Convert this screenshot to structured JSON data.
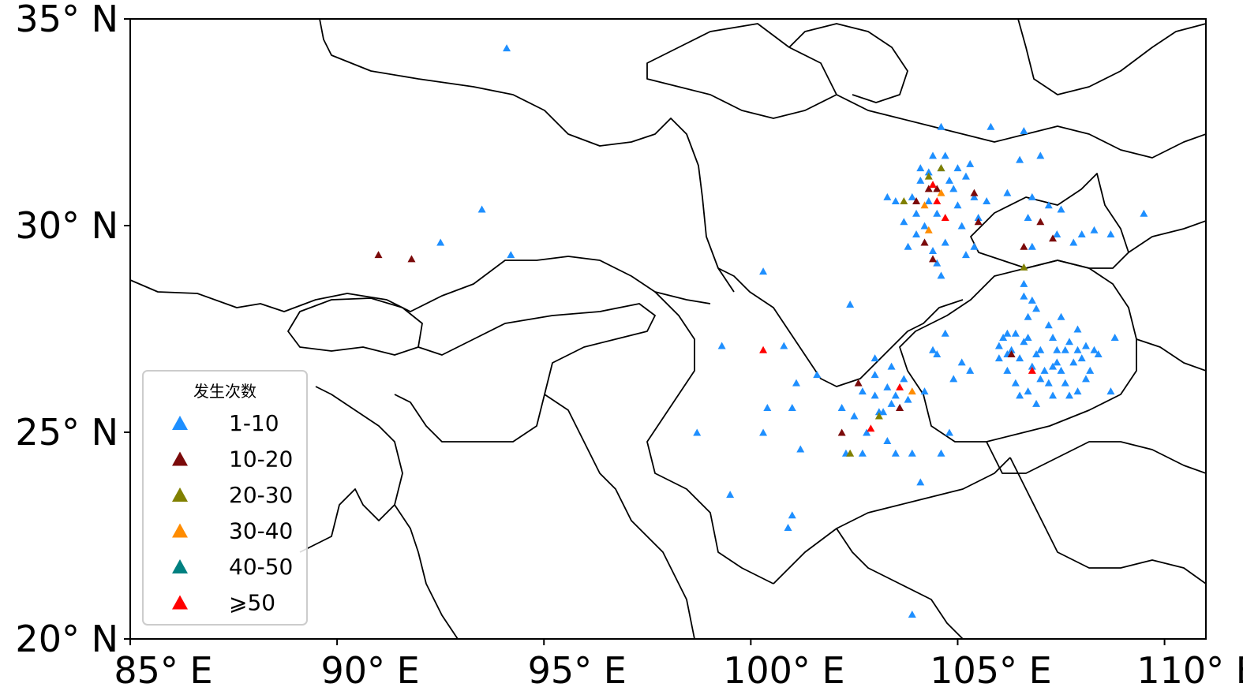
{
  "chart_data": {
    "type": "scatter",
    "title": "",
    "projection": "PlateCarree",
    "xlim": [
      85,
      111
    ],
    "ylim": [
      20,
      35
    ],
    "xticks": [
      {
        "value": 85,
        "label": "85° E"
      },
      {
        "value": 90,
        "label": "90° E"
      },
      {
        "value": 95,
        "label": "95° E"
      },
      {
        "value": 100,
        "label": "100° E"
      },
      {
        "value": 105,
        "label": "105° E"
      },
      {
        "value": 110,
        "label": "110° E"
      }
    ],
    "yticks": [
      {
        "value": 20,
        "label": "20° N"
      },
      {
        "value": 25,
        "label": "25° N"
      },
      {
        "value": 30,
        "label": "30° N"
      },
      {
        "value": 35,
        "label": "35° N"
      }
    ],
    "grid": false,
    "legend": {
      "title": "发生次数",
      "location": "lower-left",
      "entries": [
        {
          "label": "1-10",
          "color": "#1e8fff"
        },
        {
          "label": "10-20",
          "color": "#7b0a0a"
        },
        {
          "label": "20-30",
          "color": "#808000"
        },
        {
          "label": "30-40",
          "color": "#ff8c00"
        },
        {
          "label": "40-50",
          "color": "#008080"
        },
        {
          "label": "⩾50",
          "color": "#ff0000"
        }
      ]
    },
    "series": [
      {
        "name": "1-10",
        "color": "#1e8fff",
        "marker": "triangle",
        "points": [
          [
            94.1,
            34.3
          ],
          [
            93.5,
            30.4
          ],
          [
            92.5,
            29.6
          ],
          [
            94.2,
            29.3
          ],
          [
            99.3,
            27.1
          ],
          [
            100.3,
            28.9
          ],
          [
            100.8,
            27.1
          ],
          [
            98.7,
            25.0
          ],
          [
            100.3,
            25.0
          ],
          [
            100.4,
            25.6
          ],
          [
            99.5,
            23.5
          ],
          [
            101.0,
            23.0
          ],
          [
            100.9,
            22.7
          ],
          [
            101.2,
            24.6
          ],
          [
            101.0,
            25.6
          ],
          [
            101.1,
            26.2
          ],
          [
            101.6,
            26.4
          ],
          [
            102.2,
            25.6
          ],
          [
            102.3,
            24.5
          ],
          [
            102.7,
            24.5
          ],
          [
            102.4,
            28.1
          ],
          [
            103.0,
            26.8
          ],
          [
            103.0,
            25.9
          ],
          [
            103.3,
            24.8
          ],
          [
            103.5,
            24.5
          ],
          [
            103.4,
            25.7
          ],
          [
            103.6,
            25.6
          ],
          [
            103.8,
            25.8
          ],
          [
            103.7,
            26.3
          ],
          [
            103.9,
            24.5
          ],
          [
            104.2,
            26.0
          ],
          [
            104.6,
            24.5
          ],
          [
            104.4,
            27.0
          ],
          [
            104.9,
            26.3
          ],
          [
            105.1,
            26.7
          ],
          [
            105.3,
            26.5
          ],
          [
            104.8,
            25.0
          ],
          [
            104.1,
            23.8
          ],
          [
            103.9,
            20.6
          ],
          [
            102.5,
            25.4
          ],
          [
            102.8,
            25.0
          ],
          [
            103.1,
            25.5
          ],
          [
            103.3,
            26.1
          ],
          [
            103.0,
            26.4
          ],
          [
            102.7,
            26.0
          ],
          [
            103.5,
            25.9
          ],
          [
            103.4,
            26.6
          ],
          [
            104.5,
            26.9
          ],
          [
            104.7,
            27.4
          ],
          [
            103.2,
            25.5
          ],
          [
            103.3,
            30.7
          ],
          [
            103.5,
            30.6
          ],
          [
            103.9,
            30.7
          ],
          [
            104.0,
            30.3
          ],
          [
            104.1,
            31.1
          ],
          [
            104.2,
            30.0
          ],
          [
            104.3,
            30.6
          ],
          [
            104.4,
            31.7
          ],
          [
            104.5,
            30.3
          ],
          [
            104.6,
            31.4
          ],
          [
            104.6,
            32.4
          ],
          [
            104.7,
            31.7
          ],
          [
            104.8,
            31.1
          ],
          [
            104.9,
            30.9
          ],
          [
            105.0,
            30.5
          ],
          [
            105.1,
            30.0
          ],
          [
            105.2,
            31.2
          ],
          [
            105.3,
            31.5
          ],
          [
            105.4,
            30.7
          ],
          [
            105.5,
            30.2
          ],
          [
            104.2,
            29.6
          ],
          [
            104.4,
            29.4
          ],
          [
            104.5,
            29.1
          ],
          [
            104.6,
            28.8
          ],
          [
            104.7,
            29.6
          ],
          [
            104.3,
            31.3
          ],
          [
            103.7,
            30.1
          ],
          [
            103.8,
            29.5
          ],
          [
            104.0,
            29.8
          ],
          [
            104.1,
            31.4
          ],
          [
            105.0,
            31.4
          ],
          [
            105.2,
            29.3
          ],
          [
            105.4,
            29.5
          ],
          [
            105.7,
            30.6
          ],
          [
            105.8,
            32.4
          ],
          [
            106.2,
            30.8
          ],
          [
            106.5,
            31.6
          ],
          [
            106.6,
            32.3
          ],
          [
            106.7,
            30.2
          ],
          [
            106.8,
            30.7
          ],
          [
            107.0,
            31.7
          ],
          [
            107.2,
            30.5
          ],
          [
            107.4,
            29.8
          ],
          [
            107.5,
            30.4
          ],
          [
            107.8,
            29.6
          ],
          [
            108.0,
            29.8
          ],
          [
            108.3,
            29.9
          ],
          [
            108.7,
            29.8
          ],
          [
            109.5,
            30.3
          ],
          [
            106.8,
            29.5
          ],
          [
            106.6,
            28.6
          ],
          [
            106.6,
            28.3
          ],
          [
            106.7,
            27.8
          ],
          [
            106.9,
            28.0
          ],
          [
            107.2,
            27.6
          ],
          [
            107.5,
            27.8
          ],
          [
            107.9,
            27.5
          ],
          [
            108.3,
            27.0
          ],
          [
            108.1,
            26.3
          ],
          [
            107.9,
            26.0
          ],
          [
            107.6,
            26.2
          ],
          [
            107.3,
            26.6
          ],
          [
            107.0,
            26.3
          ],
          [
            106.8,
            26.6
          ],
          [
            106.5,
            26.8
          ],
          [
            106.3,
            27.0
          ],
          [
            106.1,
            27.3
          ],
          [
            106.0,
            26.8
          ],
          [
            106.2,
            26.5
          ],
          [
            106.4,
            26.2
          ],
          [
            106.7,
            26.0
          ],
          [
            107.1,
            26.5
          ],
          [
            107.4,
            27.0
          ],
          [
            107.7,
            27.2
          ],
          [
            108.0,
            26.8
          ],
          [
            108.2,
            26.5
          ],
          [
            108.4,
            26.9
          ],
          [
            107.8,
            26.7
          ],
          [
            107.5,
            26.5
          ],
          [
            107.2,
            26.2
          ],
          [
            106.9,
            26.9
          ],
          [
            106.6,
            27.2
          ],
          [
            106.4,
            27.4
          ],
          [
            106.7,
            27.3
          ],
          [
            107.0,
            27.0
          ],
          [
            107.3,
            27.3
          ],
          [
            107.6,
            27.0
          ],
          [
            107.9,
            27.0
          ],
          [
            108.1,
            27.1
          ],
          [
            107.4,
            26.7
          ],
          [
            106.9,
            25.7
          ],
          [
            106.5,
            25.9
          ],
          [
            107.7,
            25.9
          ],
          [
            107.3,
            25.9
          ],
          [
            106.2,
            27.4
          ],
          [
            106.0,
            27.1
          ],
          [
            106.2,
            26.9
          ],
          [
            108.7,
            26.0
          ],
          [
            108.8,
            27.3
          ],
          [
            106.8,
            28.2
          ]
        ]
      },
      {
        "name": "10-20",
        "color": "#7b0a0a",
        "marker": "triangle",
        "points": [
          [
            91.0,
            29.3
          ],
          [
            91.8,
            29.2
          ],
          [
            104.3,
            30.9
          ],
          [
            104.2,
            29.6
          ],
          [
            105.4,
            30.8
          ],
          [
            105.5,
            30.1
          ],
          [
            104.5,
            30.9
          ],
          [
            104.4,
            29.2
          ],
          [
            103.6,
            25.6
          ],
          [
            102.6,
            26.2
          ],
          [
            102.2,
            25.0
          ],
          [
            107.3,
            29.7
          ],
          [
            107.0,
            30.1
          ],
          [
            106.3,
            26.9
          ],
          [
            106.6,
            29.5
          ],
          [
            104.0,
            30.6
          ]
        ]
      },
      {
        "name": "20-30",
        "color": "#808000",
        "marker": "triangle",
        "points": [
          [
            104.6,
            31.4
          ],
          [
            104.3,
            31.2
          ],
          [
            103.7,
            30.6
          ],
          [
            106.6,
            29.0
          ],
          [
            103.1,
            25.4
          ],
          [
            102.4,
            24.5
          ]
        ]
      },
      {
        "name": "30-40",
        "color": "#ff8c00",
        "marker": "triangle",
        "points": [
          [
            104.2,
            30.5
          ],
          [
            104.3,
            29.9
          ],
          [
            104.6,
            30.8
          ],
          [
            103.9,
            26.0
          ]
        ]
      },
      {
        "name": "40-50",
        "color": "#008080",
        "marker": "triangle",
        "points": []
      },
      {
        "name": "⩾50",
        "color": "#ff0000",
        "marker": "triangle",
        "points": [
          [
            100.3,
            27.0
          ],
          [
            104.4,
            31.0
          ],
          [
            104.5,
            30.6
          ],
          [
            104.7,
            30.2
          ],
          [
            103.6,
            26.1
          ],
          [
            102.9,
            25.1
          ],
          [
            106.8,
            26.5
          ]
        ]
      }
    ]
  }
}
